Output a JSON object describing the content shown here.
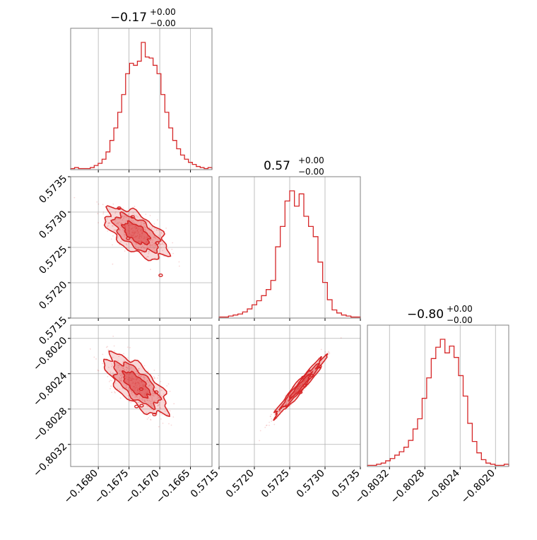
{
  "chart_data": {
    "type": "scatter",
    "style": {
      "color": "#d62728",
      "grid": true
    },
    "parameters": [
      {
        "title_value": "−0.17",
        "title_sup": "+0.00",
        "title_sub": "−0.00",
        "range": [
          -0.16845,
          -0.16615
        ],
        "ticks": [
          -0.168,
          -0.1675,
          -0.167,
          -0.1665
        ],
        "tick_labels": [
          "−0.1680",
          "−0.1675",
          "−0.1670",
          "−0.1665"
        ]
      },
      {
        "title_value": "0.57",
        "title_sup": "+0.00",
        "title_sub": "−0.00",
        "range": [
          0.5715,
          0.5735
        ],
        "ticks": [
          0.5715,
          0.572,
          0.5725,
          0.573,
          0.5735
        ],
        "tick_labels": [
          "0.5715",
          "0.5720",
          "0.5725",
          "0.5730",
          "0.5735"
        ]
      },
      {
        "title_value": "−0.80",
        "title_sup": "+0.00",
        "title_sub": "−0.00",
        "range": [
          -0.80345,
          -0.80185
        ],
        "ticks": [
          -0.8032,
          -0.8028,
          -0.8024,
          -0.802
        ],
        "tick_labels": [
          "−0.8032",
          "−0.8028",
          "−0.8024",
          "−0.8020"
        ]
      }
    ],
    "histograms": [
      [
        1,
        2,
        1,
        1,
        1,
        2,
        4,
        6,
        10,
        17,
        28,
        40,
        55,
        72,
        92,
        102,
        100,
        104,
        122,
        108,
        107,
        100,
        92,
        72,
        55,
        40,
        28,
        20,
        14,
        10,
        7,
        5,
        3,
        2,
        1,
        2
      ],
      [
        1,
        1,
        2,
        3,
        4,
        6,
        9,
        13,
        17,
        22,
        28,
        37,
        70,
        90,
        115,
        125,
        110,
        122,
        100,
        90,
        80,
        55,
        35,
        18,
        8,
        5,
        3,
        2,
        1,
        1
      ],
      [
        1,
        1,
        2,
        3,
        5,
        7,
        10,
        13,
        17,
        23,
        33,
        42,
        60,
        78,
        95,
        105,
        112,
        100,
        106,
        96,
        80,
        62,
        38,
        22,
        12,
        6,
        3,
        2,
        1,
        1,
        2
      ]
    ],
    "pairs": [
      {
        "x": 0,
        "y": 1,
        "center": [
          -0.16738,
          0.5727
        ],
        "sd": [
          0.00025,
          0.00018
        ],
        "rho": -0.6
      },
      {
        "x": 0,
        "y": 2,
        "center": [
          -0.16738,
          -0.80252
        ],
        "sd": [
          0.00025,
          0.00017
        ],
        "rho": -0.7
      },
      {
        "x": 1,
        "y": 2,
        "center": [
          0.57265,
          -0.80254
        ],
        "sd": [
          0.00018,
          0.00017
        ],
        "rho": 0.97
      }
    ]
  }
}
